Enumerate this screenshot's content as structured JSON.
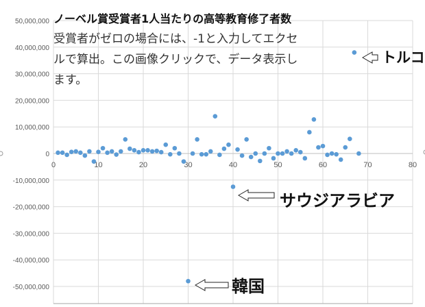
{
  "chart_data": {
    "type": "scatter",
    "title": "ノーベル賞受賞者1人当たりの高等教育修了者数",
    "subtitle": "受賞者がゼロの場合には、-1と入力してエクセルで算出。この画像クリックで、データ表示します。",
    "xlim": [
      0,
      80
    ],
    "ylim": [
      -50000000,
      50000000
    ],
    "xticks": [
      "0",
      "10",
      "20",
      "30",
      "40",
      "50",
      "60",
      "70",
      "80"
    ],
    "yticks": [
      "50,000,000",
      "40,000,000",
      "30,000,000",
      "20,000,000",
      "10,000,000",
      "0",
      "-10,000,000",
      "-20,000,000",
      "-30,000,000",
      "-40,000,000",
      "-50,000,000"
    ],
    "grid": true,
    "marker_color": "#5b9bd5",
    "points": [
      [
        1,
        300000
      ],
      [
        2,
        300000
      ],
      [
        3,
        -500000
      ],
      [
        4,
        600000
      ],
      [
        5,
        800000
      ],
      [
        6,
        300000
      ],
      [
        7,
        -800000
      ],
      [
        8,
        800000
      ],
      [
        9,
        -3000000
      ],
      [
        10,
        600000
      ],
      [
        11,
        2000000
      ],
      [
        12,
        300000
      ],
      [
        13,
        800000
      ],
      [
        14,
        -400000
      ],
      [
        15,
        800000
      ],
      [
        16,
        5300000
      ],
      [
        17,
        1800000
      ],
      [
        18,
        1200000
      ],
      [
        19,
        500000
      ],
      [
        20,
        1200000
      ],
      [
        21,
        1200000
      ],
      [
        22,
        800000
      ],
      [
        23,
        1000000
      ],
      [
        24,
        500000
      ],
      [
        25,
        3300000
      ],
      [
        26,
        -300000
      ],
      [
        27,
        2000000
      ],
      [
        28,
        0
      ],
      [
        29,
        -3000000
      ],
      [
        30,
        -48000000
      ],
      [
        31,
        0
      ],
      [
        32,
        5300000
      ],
      [
        33,
        -300000
      ],
      [
        34,
        -300000
      ],
      [
        35,
        800000
      ],
      [
        36,
        14000000
      ],
      [
        37,
        -500000
      ],
      [
        38,
        1800000
      ],
      [
        39,
        3300000
      ],
      [
        40,
        -12500000
      ],
      [
        41,
        1500000
      ],
      [
        42,
        -800000
      ],
      [
        43,
        5300000
      ],
      [
        44,
        -1300000
      ],
      [
        45,
        0
      ],
      [
        46,
        -2800000
      ],
      [
        47,
        0
      ],
      [
        48,
        2000000
      ],
      [
        49,
        -1800000
      ],
      [
        50,
        0
      ],
      [
        51,
        0
      ],
      [
        52,
        800000
      ],
      [
        53,
        0
      ],
      [
        54,
        1200000
      ],
      [
        55,
        500000
      ],
      [
        56,
        -1800000
      ],
      [
        57,
        8000000
      ],
      [
        58,
        12800000
      ],
      [
        59,
        2300000
      ],
      [
        60,
        2800000
      ],
      [
        61,
        -500000
      ],
      [
        62,
        0
      ],
      [
        63,
        -300000
      ],
      [
        64,
        -2300000
      ],
      [
        65,
        2300000
      ],
      [
        66,
        5500000
      ],
      [
        67,
        38000000
      ],
      [
        68,
        0
      ]
    ],
    "annotations": [
      {
        "text": "トルコ",
        "x": 67,
        "y": 38000000
      },
      {
        "text": "サウジアラビア",
        "x": 40,
        "y": -12500000
      },
      {
        "text": "韓国",
        "x": 30,
        "y": -48000000
      }
    ]
  },
  "overlay": {
    "title": "ノーベル賞受賞者1人当たりの高等教育修了者数",
    "line1": "受賞者がゼロの場合には、-1と入力してエクセ",
    "line2": "ルで算出。この画像クリックで、データ表示し",
    "line3": "ます。"
  }
}
